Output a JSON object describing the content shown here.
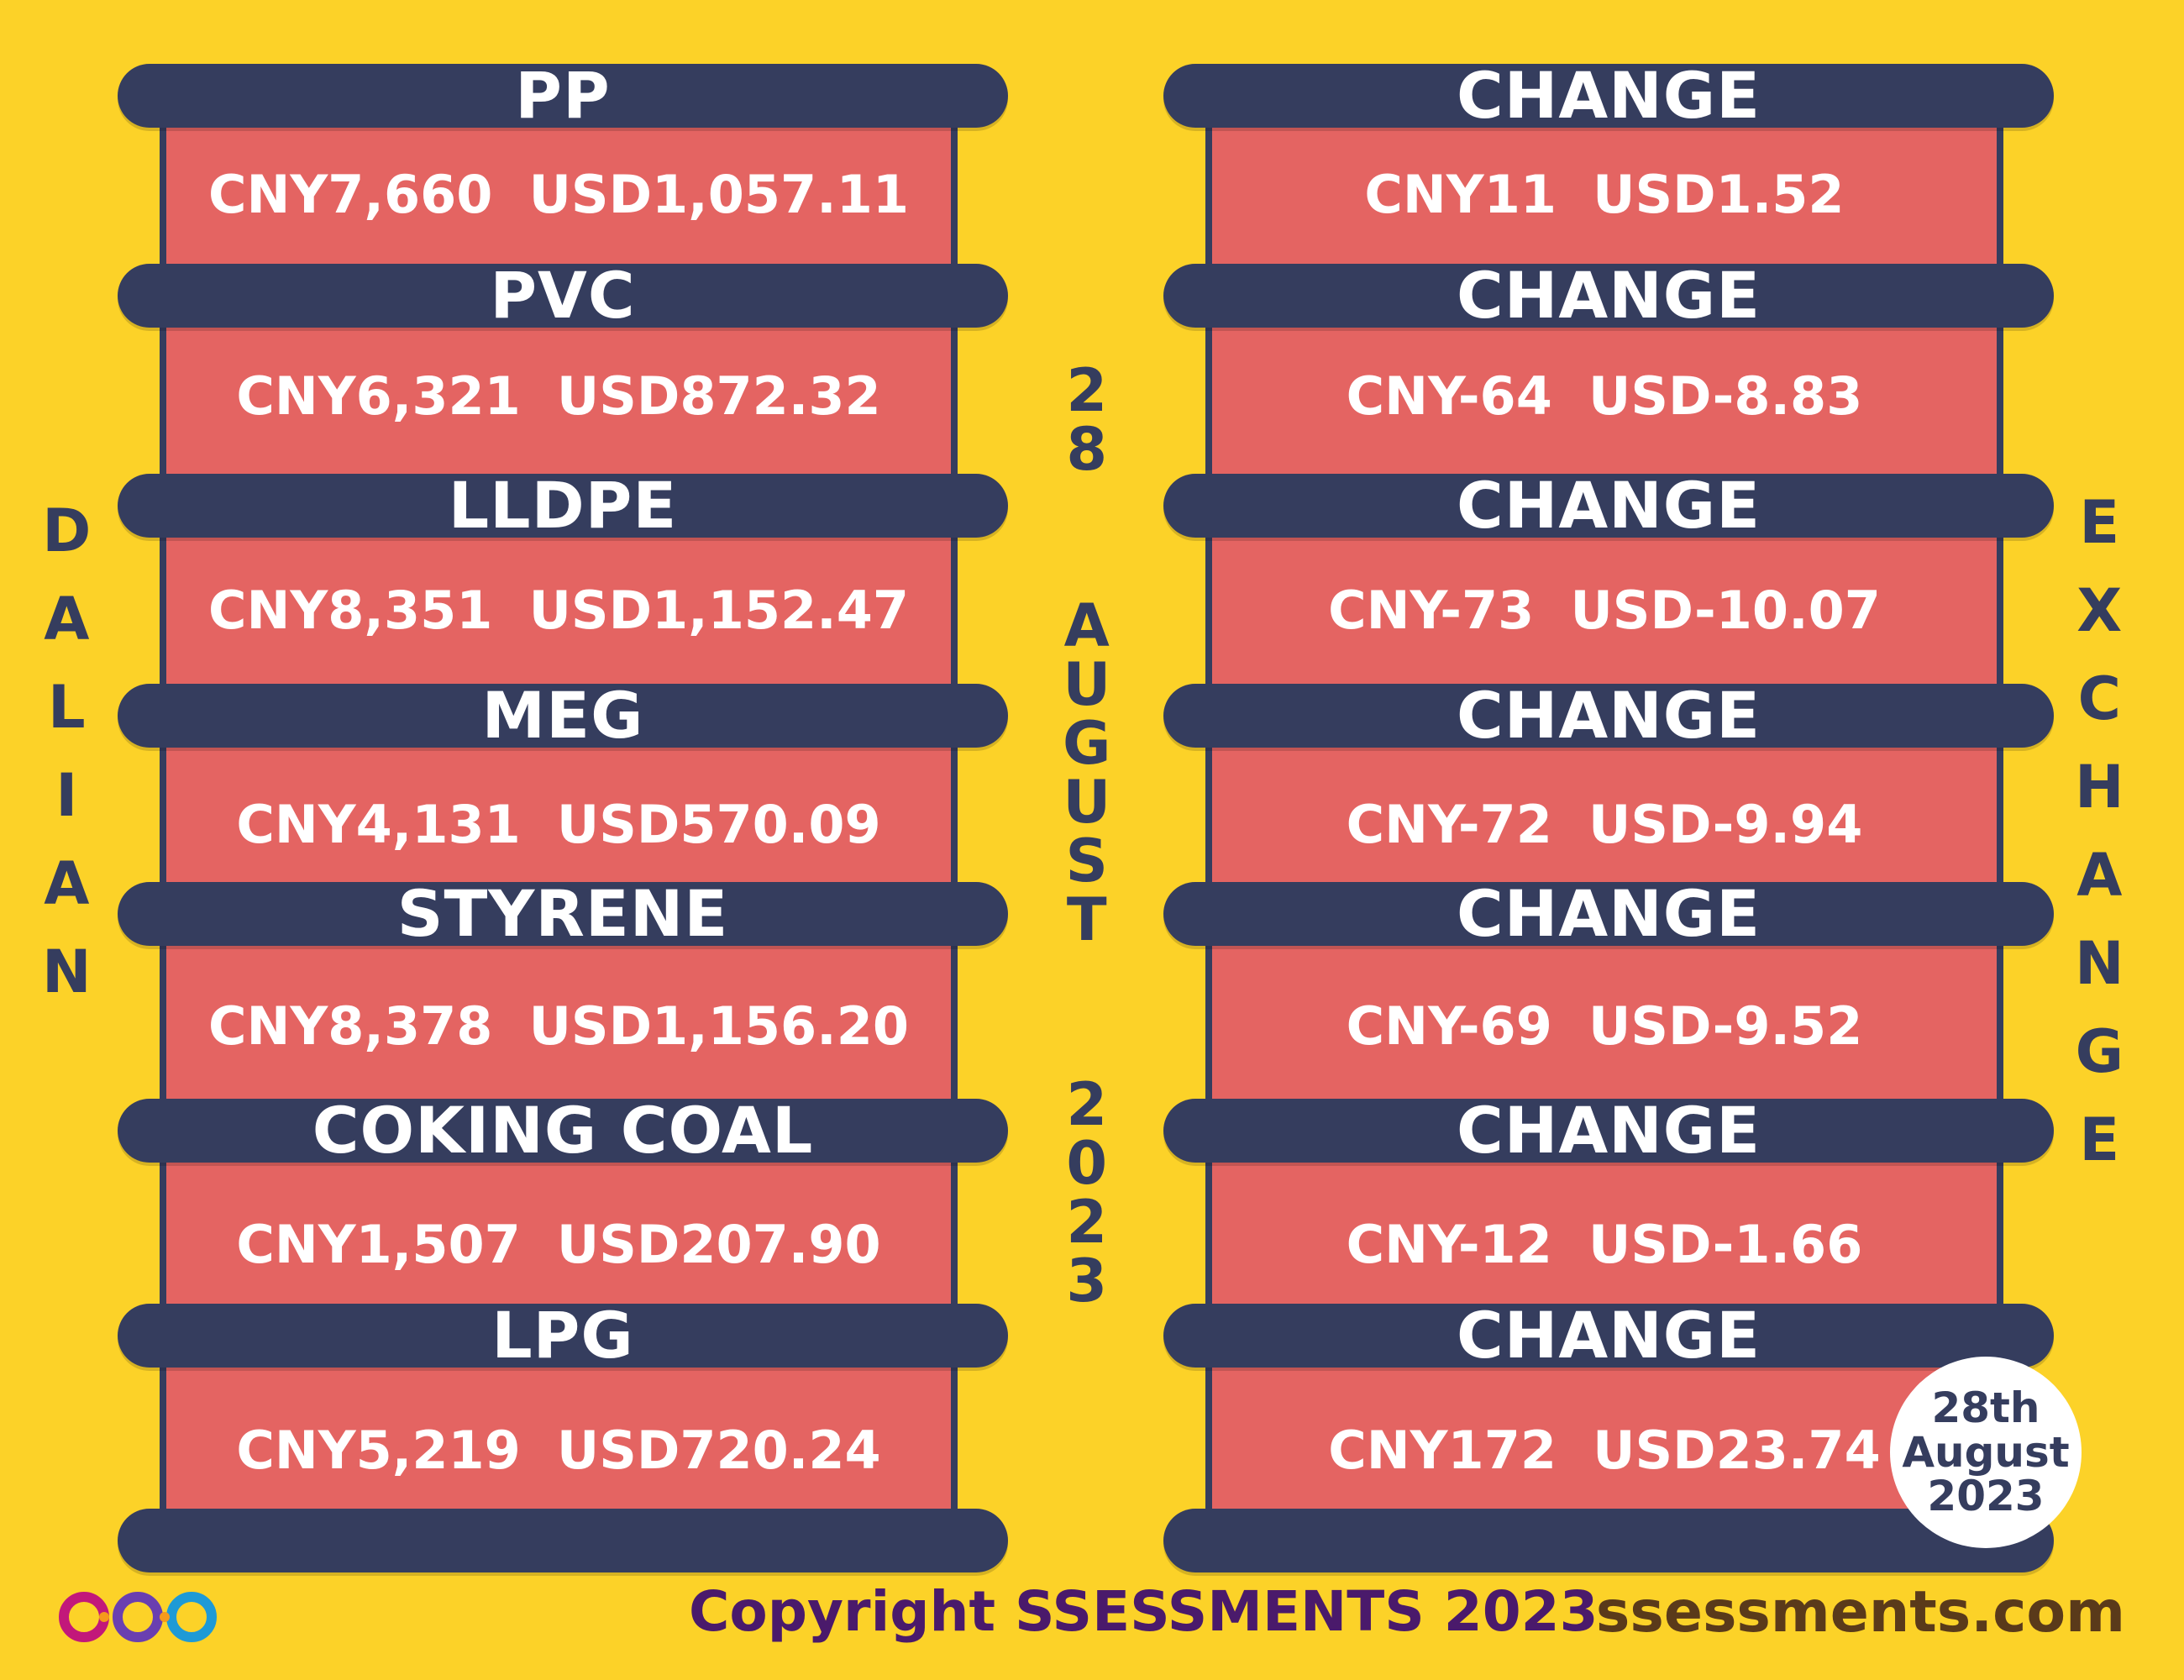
{
  "left_label": [
    "D",
    "A",
    "L",
    "I",
    "A",
    "N"
  ],
  "right_label": [
    "E",
    "X",
    "C",
    "H",
    "A",
    "N",
    "G",
    "E"
  ],
  "date_vertical": {
    "day": [
      "2",
      "8"
    ],
    "month": [
      "A",
      "U",
      "G",
      "U",
      "S",
      "T"
    ],
    "year": [
      "2",
      "0",
      "2",
      "3"
    ]
  },
  "commodities": [
    {
      "name": "PP",
      "price": "CNY7,660  USD1,057.11",
      "change_label": "CHANGE",
      "change": "CNY11  USD1.52"
    },
    {
      "name": "PVC",
      "price": "CNY6,321  USD872.32",
      "change_label": "CHANGE",
      "change": "CNY-64  USD-8.83"
    },
    {
      "name": "LLDPE",
      "price": "CNY8,351  USD1,152.47",
      "change_label": "CHANGE",
      "change": "CNY-73  USD-10.07"
    },
    {
      "name": "MEG",
      "price": "CNY4,131  USD570.09",
      "change_label": "CHANGE",
      "change": "CNY-72  USD-9.94"
    },
    {
      "name": "STYRENE",
      "price": "CNY8,378  USD1,156.20",
      "change_label": "CHANGE",
      "change": "CNY-69  USD-9.52"
    },
    {
      "name": "COKING COAL",
      "price": "CNY1,507  USD207.90",
      "change_label": "CHANGE",
      "change": "CNY-12  USD-1.66"
    },
    {
      "name": "LPG",
      "price": "CNY5,219  USD720.24",
      "change_label": "CHANGE",
      "change": "CNY172  USD23.74"
    }
  ],
  "badge": {
    "line1": "28th",
    "line2": "August",
    "line3": "2023"
  },
  "footer": {
    "copyright": "Copyright SSESSMENTS 2023",
    "website": "ssessments.com",
    "logo_icon": "infinity-logo-icon"
  },
  "colors": {
    "background": "#fcd228",
    "bar": "#353d5e",
    "panel": "#e46462",
    "text": "#ffffff"
  }
}
